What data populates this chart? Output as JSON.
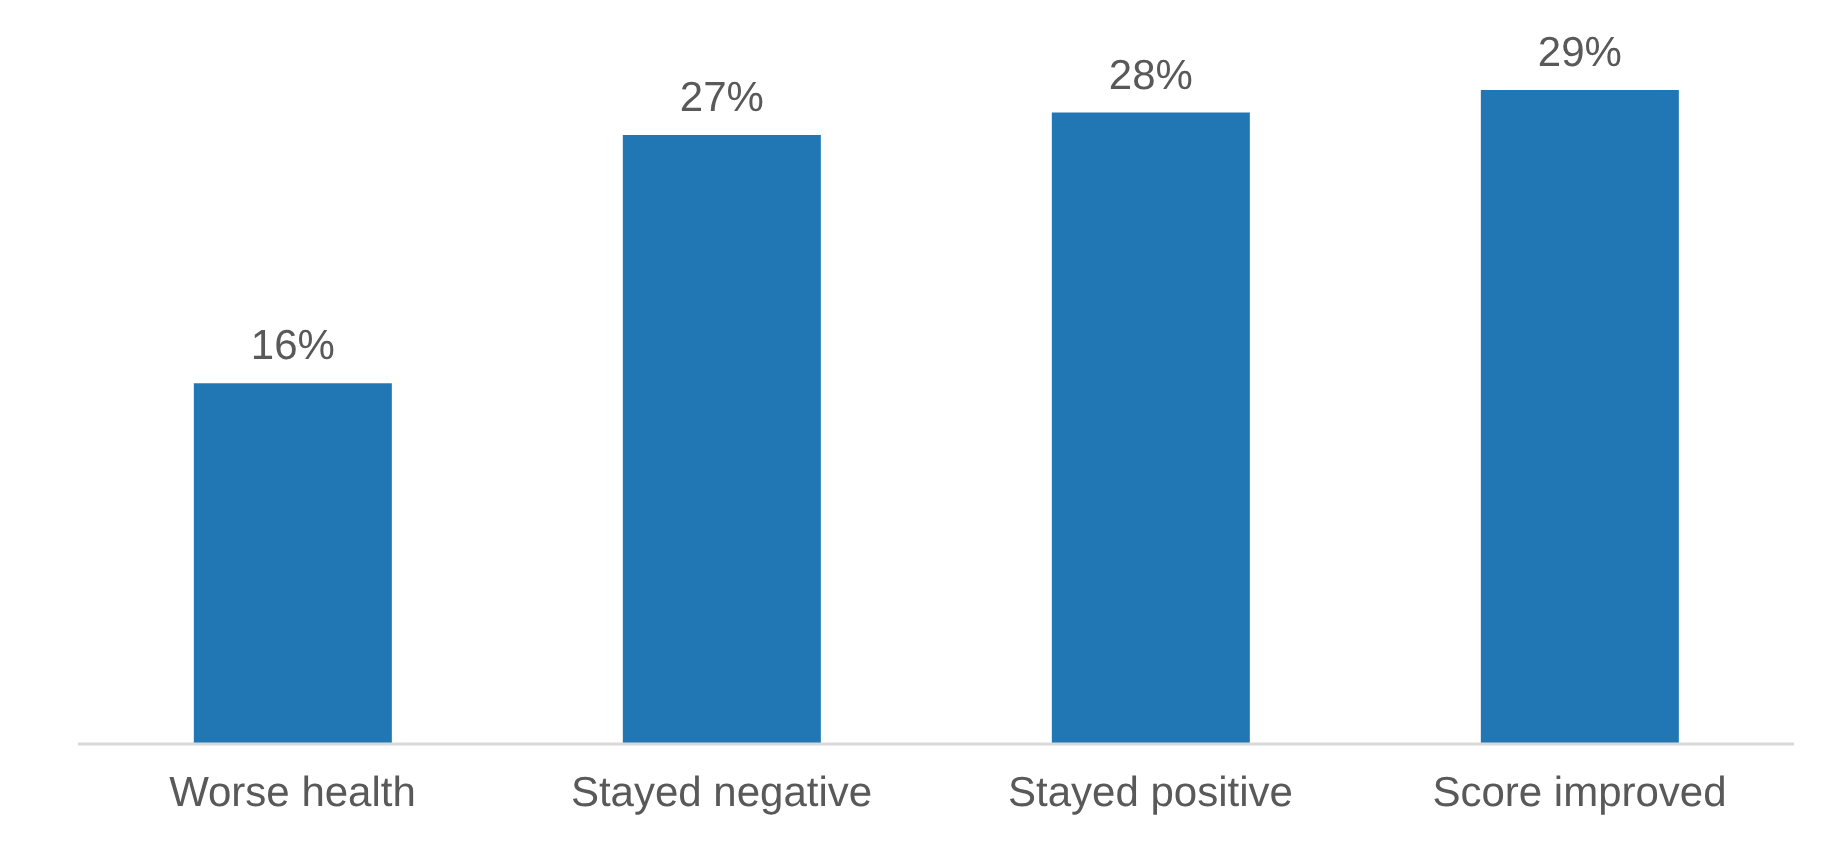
{
  "chart_data": {
    "type": "bar",
    "categories": [
      "Worse health",
      "Stayed negative",
      "Stayed positive",
      "Score improved"
    ],
    "values": [
      16,
      27,
      28,
      29
    ],
    "color": "#2077b4",
    "value_labels": [
      "16%",
      "27%",
      "28%",
      "29%"
    ]
  }
}
